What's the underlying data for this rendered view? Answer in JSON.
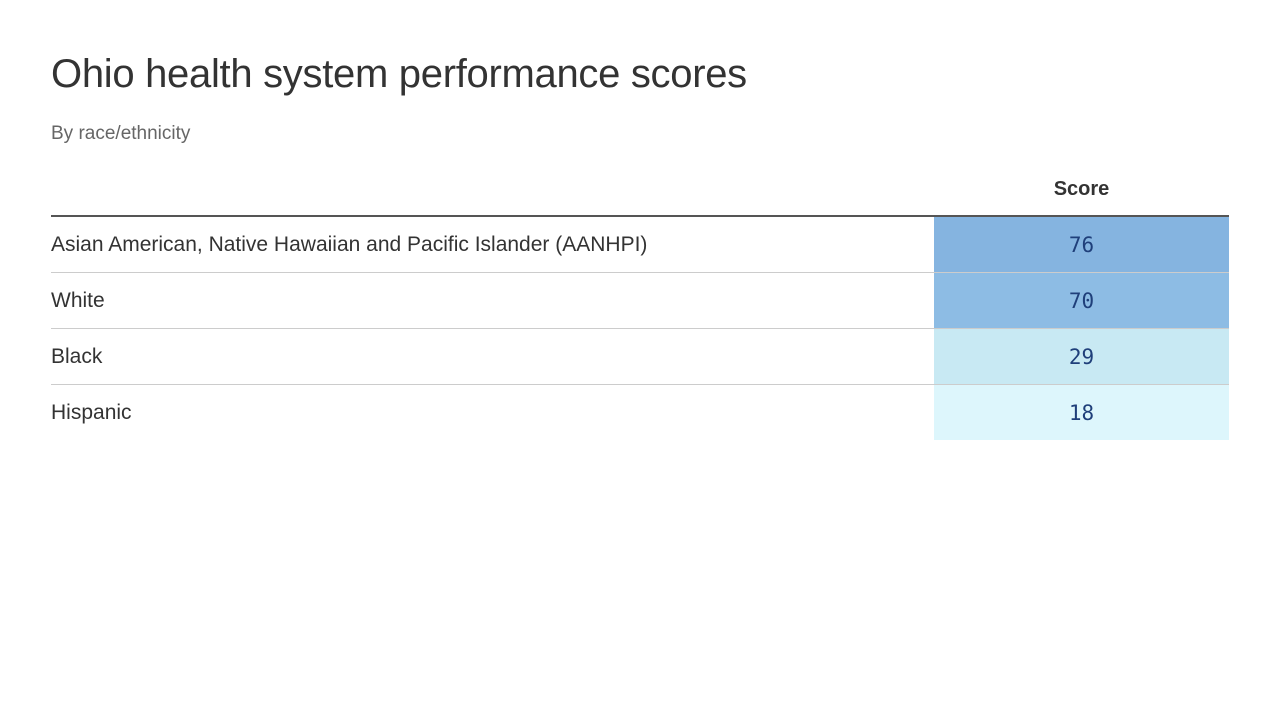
{
  "title": "Ohio health system performance scores",
  "subtitle": "By race/ethnicity",
  "chart_data": {
    "type": "table",
    "title": "Ohio health system performance scores",
    "subtitle": "By race/ethnicity",
    "columns": [
      "",
      "Score"
    ],
    "rows": [
      {
        "label": "Asian American, Native Hawaiian and Pacific Islander (AANHPI)",
        "score": "76",
        "color": "#85b4e0"
      },
      {
        "label": "White",
        "score": "70",
        "color": "#8dbce4"
      },
      {
        "label": "Black",
        "score": "29",
        "color": "#c8e9f3"
      },
      {
        "label": "Hispanic",
        "score": "18",
        "color": "#ddf6fc"
      }
    ]
  }
}
